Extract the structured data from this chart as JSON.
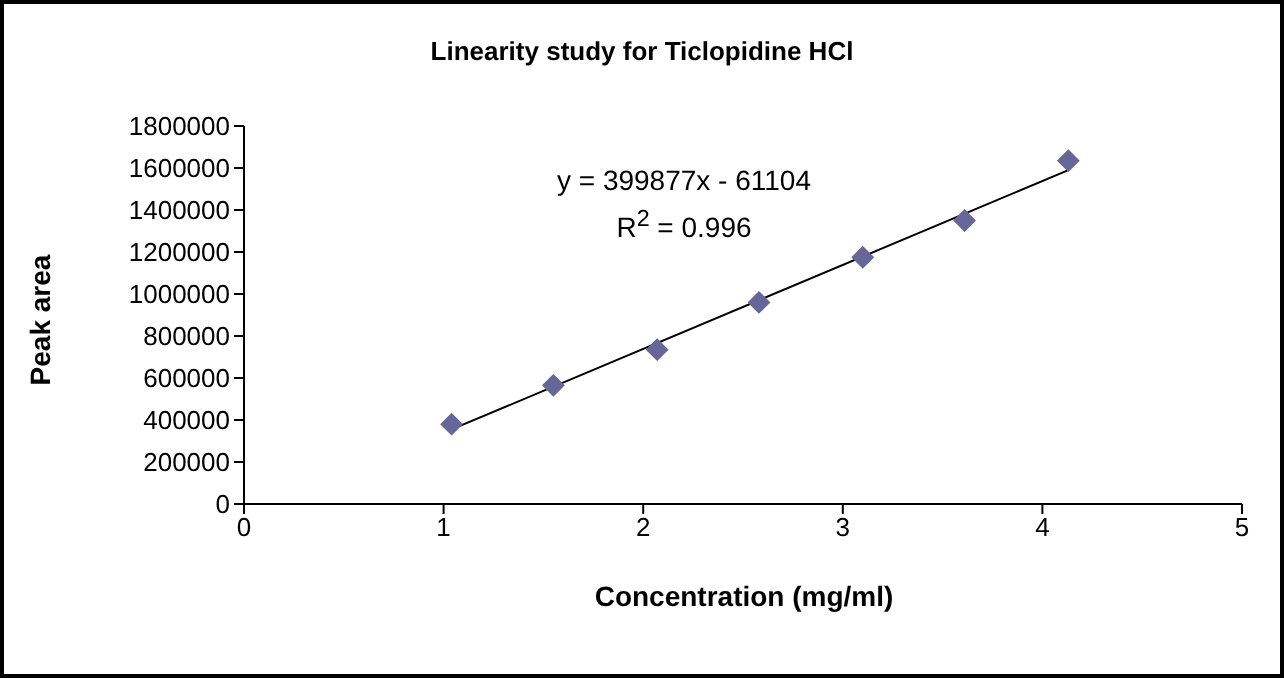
{
  "chart_data": {
    "type": "scatter",
    "title": "Linearity study for Ticlopidine HCl",
    "xlabel": "Concentration (mg/ml)",
    "ylabel": "Peak area",
    "annotations": [
      "y = 399877x - 61104",
      "R$^{2}$ = 0.996"
    ],
    "series": [
      {
        "color": "#666699",
        "marker": "diamond",
        "x": [
          1.04,
          1.55,
          2.07,
          2.58,
          3.1,
          3.61,
          4.13
        ],
        "values": [
          380000,
          565000,
          735000,
          960000,
          1175000,
          1350000,
          1635000
        ]
      },
      {
        "type": "line",
        "color": "#000000",
        "marker": "none",
        "x": [
          1.04,
          4.13
        ],
        "values": [
          355000,
          1590000
        ]
      }
    ],
    "xlim": [
      0,
      5
    ],
    "xticks": [
      0,
      1,
      2,
      3,
      4,
      5
    ],
    "ylim": [
      0,
      1800000
    ],
    "yticks": [
      0,
      200000,
      400000,
      600000,
      800000,
      1000000,
      1200000,
      1400000,
      1600000,
      1800000
    ],
    "grid": false,
    "legend": false
  }
}
